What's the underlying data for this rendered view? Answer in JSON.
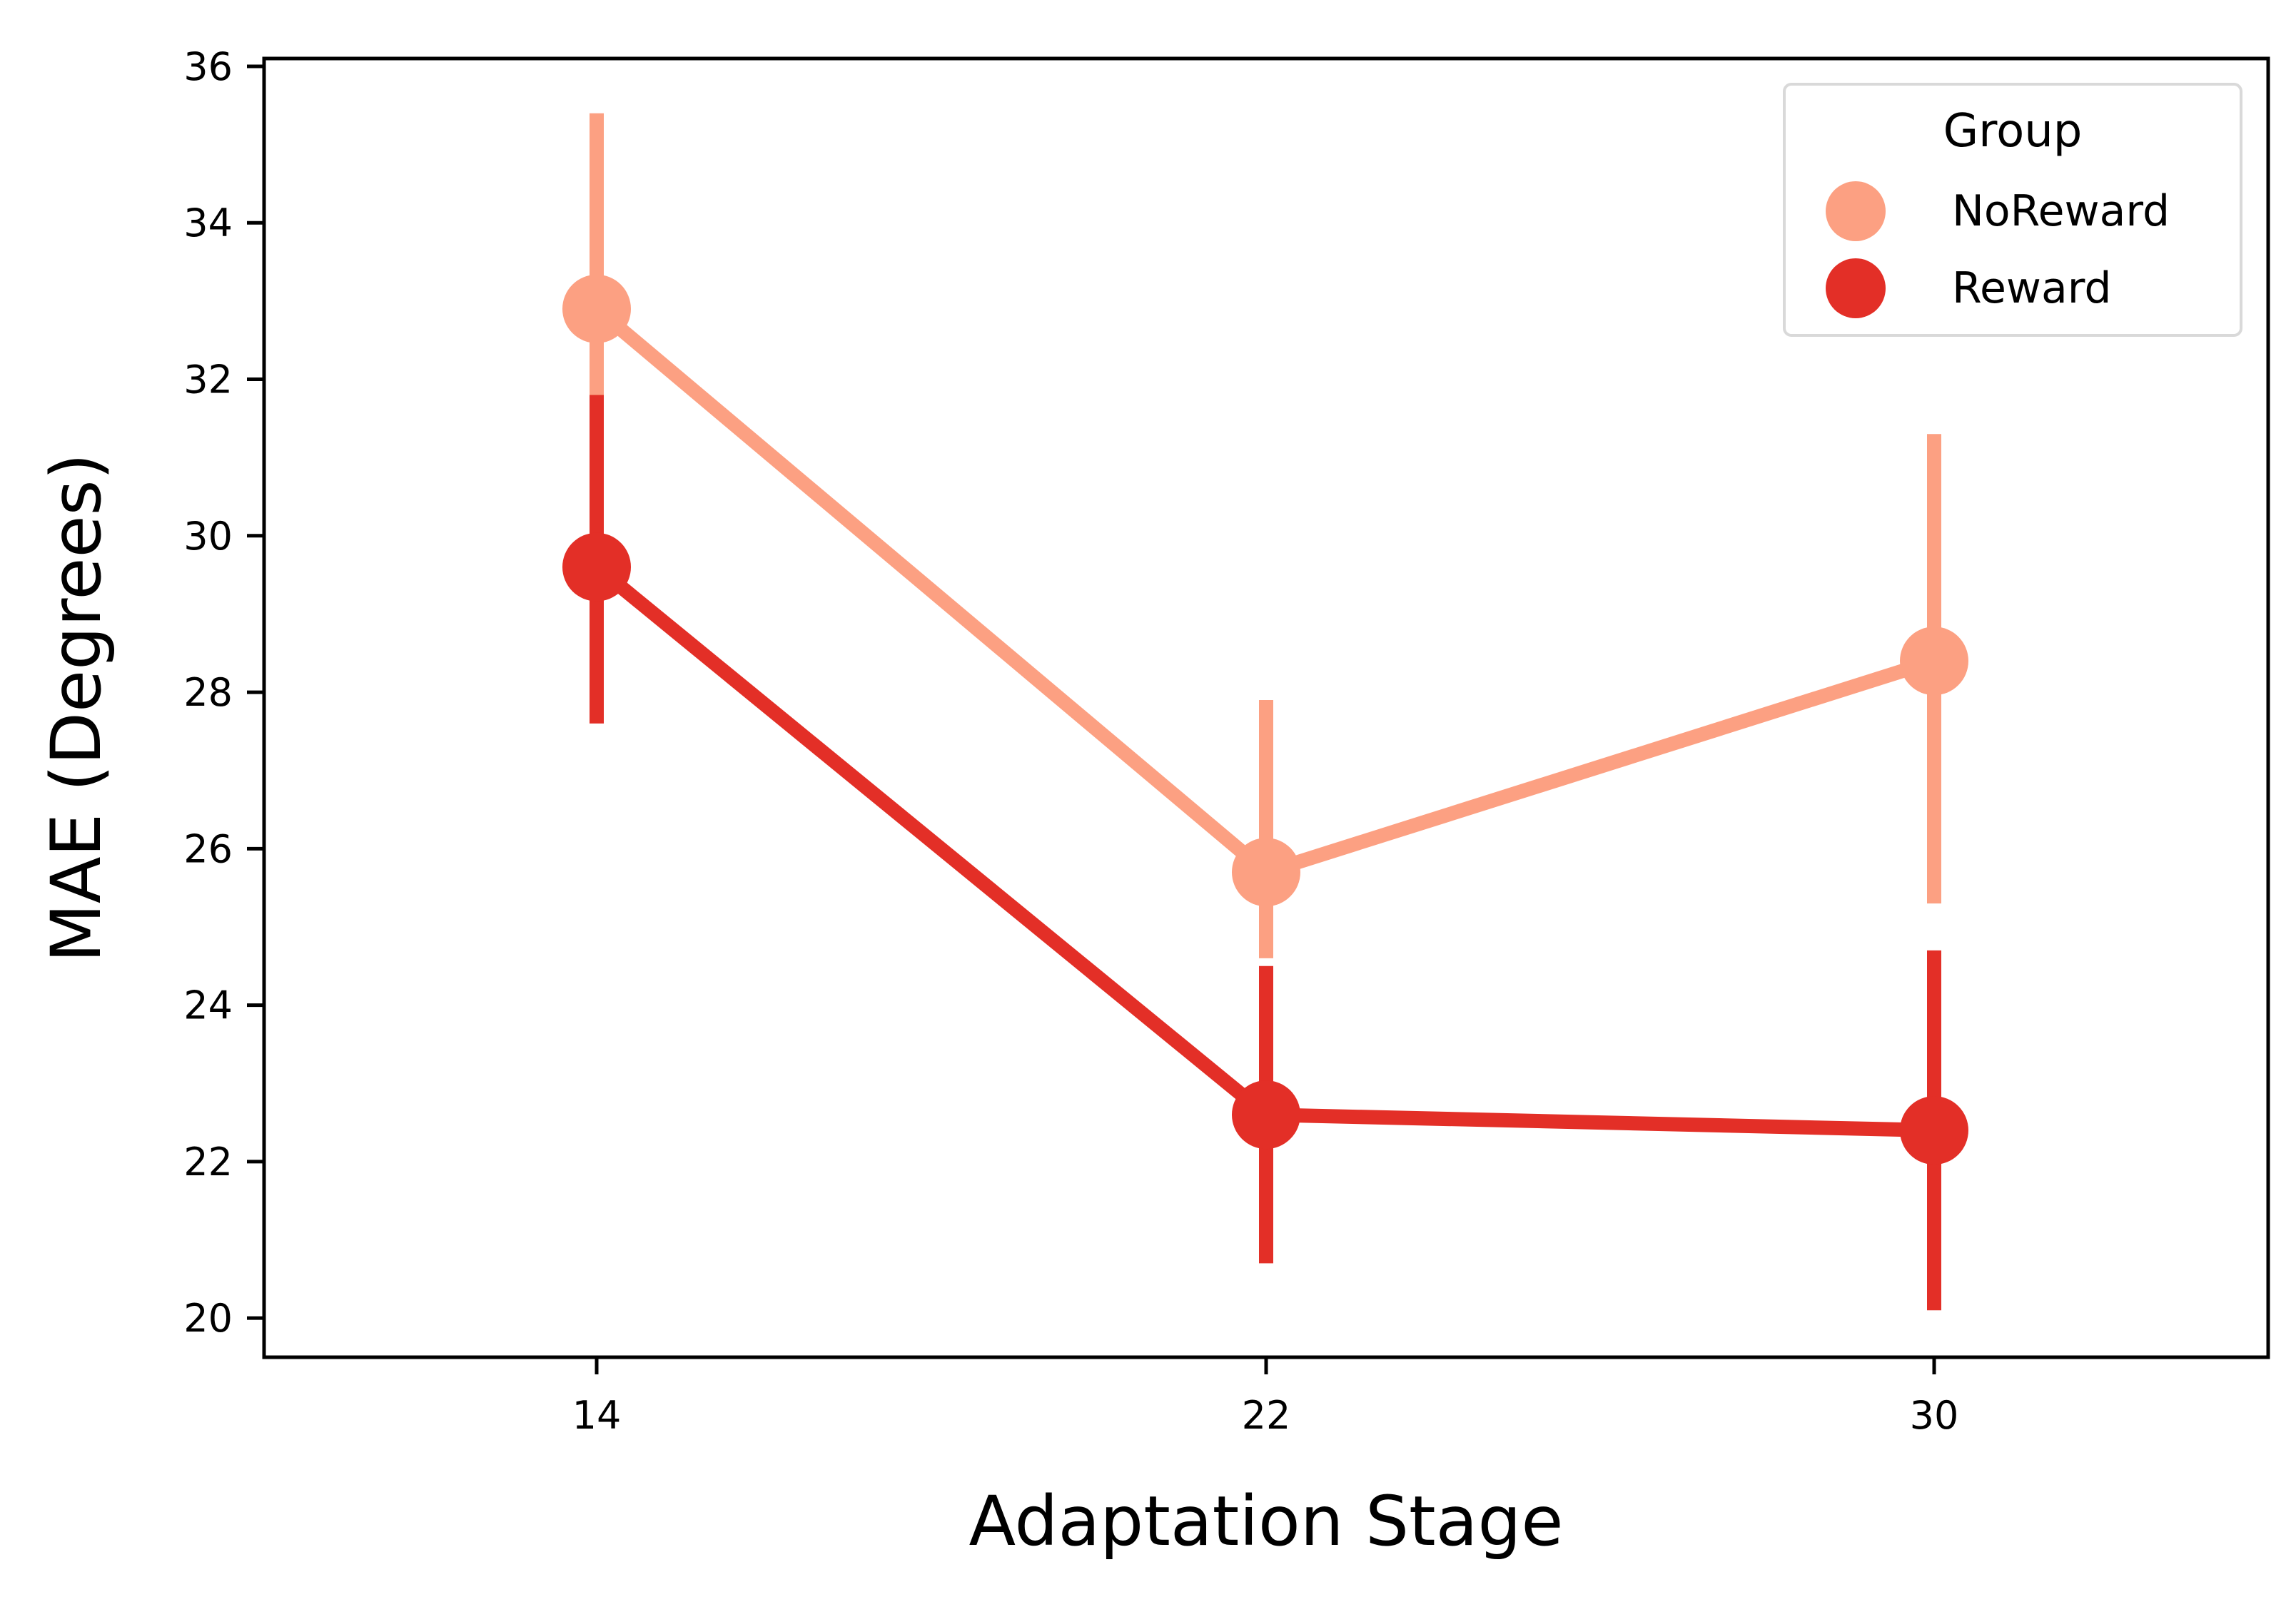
{
  "chart_data": {
    "type": "line",
    "xlabel": "Adaptation Stage",
    "ylabel": "MAE (Degrees)",
    "categories": [
      "14",
      "22",
      "30"
    ],
    "ylim": [
      19.5,
      36.1
    ],
    "yticks": [
      20,
      22,
      24,
      26,
      28,
      30,
      32,
      34,
      36
    ],
    "grid": false,
    "legend": {
      "title": "Group",
      "placement": "top-right"
    },
    "series": [
      {
        "name": "NoReward",
        "color": "#fca082",
        "values": [
          32.9,
          25.7,
          28.4
        ],
        "ci_low": [
          31.8,
          24.6,
          25.3
        ],
        "ci_high": [
          35.4,
          27.9,
          31.3
        ]
      },
      {
        "name": "Reward",
        "color": "#e32f27",
        "values": [
          29.6,
          22.6,
          22.4
        ],
        "ci_low": [
          27.6,
          20.7,
          20.1
        ],
        "ci_high": [
          31.8,
          24.5,
          24.7
        ]
      }
    ]
  }
}
